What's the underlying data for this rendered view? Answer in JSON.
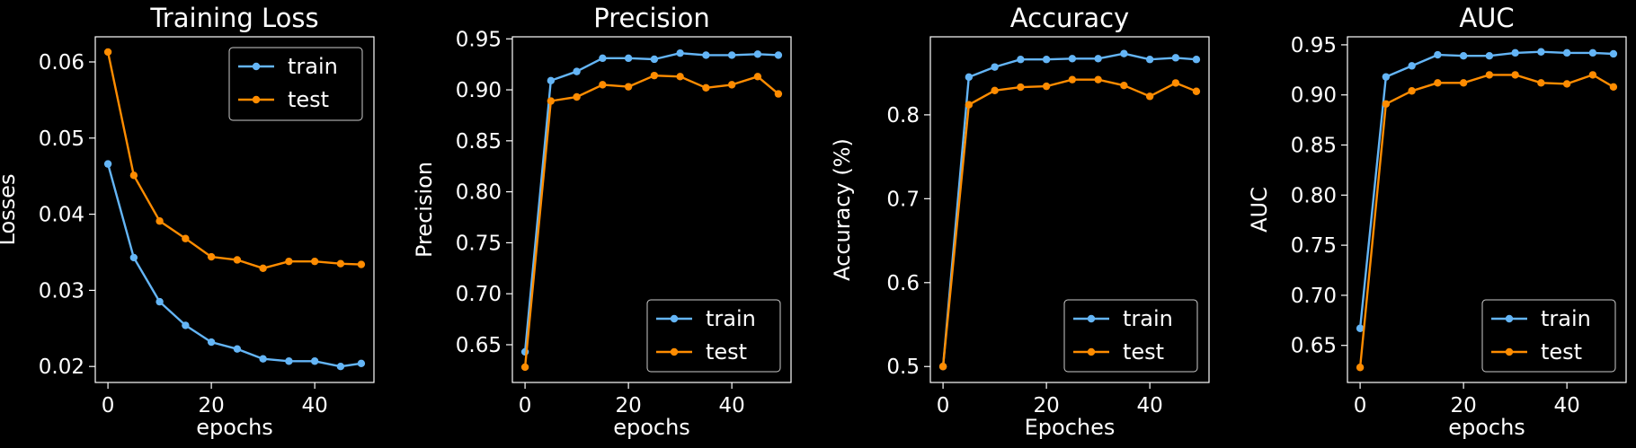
{
  "colors": {
    "background": "#000000",
    "foreground": "#ffffff",
    "train": "#64b5f6",
    "test": "#ff8c00"
  },
  "chart_data": [
    {
      "type": "line",
      "title": "Training Loss",
      "xlabel": "epochs",
      "ylabel": "Losses",
      "x": [
        0,
        5,
        10,
        15,
        20,
        25,
        30,
        35,
        40,
        45,
        49
      ],
      "xlim": [
        -2.45,
        51.45
      ],
      "ylim": [
        0.0179,
        0.0633
      ],
      "xticks": [
        0,
        20,
        40
      ],
      "yticks": [
        0.02,
        0.03,
        0.04,
        0.05,
        0.06
      ],
      "ytick_labels": [
        "0.02",
        "0.03",
        "0.04",
        "0.05",
        "0.06"
      ],
      "legend": "top-right",
      "grid": false,
      "series": [
        {
          "name": "train",
          "values": [
            0.0466,
            0.0343,
            0.0285,
            0.0254,
            0.0232,
            0.0223,
            0.021,
            0.0207,
            0.0207,
            0.02,
            0.0204
          ]
        },
        {
          "name": "test",
          "values": [
            0.0613,
            0.0451,
            0.0391,
            0.0368,
            0.0344,
            0.034,
            0.0329,
            0.0338,
            0.0338,
            0.0335,
            0.0334
          ]
        }
      ]
    },
    {
      "type": "line",
      "title": "Precision",
      "xlabel": "epochs",
      "ylabel": "Precision",
      "x": [
        0,
        5,
        10,
        15,
        20,
        25,
        30,
        35,
        40,
        45,
        49
      ],
      "xlim": [
        -2.45,
        51.45
      ],
      "ylim": [
        0.613,
        0.952
      ],
      "xticks": [
        0,
        20,
        40
      ],
      "yticks": [
        0.65,
        0.7,
        0.75,
        0.8,
        0.85,
        0.9,
        0.95
      ],
      "ytick_labels": [
        "0.65",
        "0.70",
        "0.75",
        "0.80",
        "0.85",
        "0.90",
        "0.95"
      ],
      "legend": "bottom-right",
      "grid": false,
      "series": [
        {
          "name": "train",
          "values": [
            0.643,
            0.909,
            0.918,
            0.931,
            0.931,
            0.93,
            0.936,
            0.934,
            0.934,
            0.935,
            0.934
          ]
        },
        {
          "name": "test",
          "values": [
            0.628,
            0.889,
            0.893,
            0.905,
            0.903,
            0.914,
            0.913,
            0.902,
            0.905,
            0.913,
            0.896
          ]
        }
      ]
    },
    {
      "type": "line",
      "title": "Accuracy",
      "xlabel": "Epoches",
      "ylabel": "Accuracy (%)",
      "x": [
        0,
        5,
        10,
        15,
        20,
        25,
        30,
        35,
        40,
        45,
        49
      ],
      "xlim": [
        -2.45,
        51.45
      ],
      "ylim": [
        0.481,
        0.893
      ],
      "xticks": [
        0,
        20,
        40
      ],
      "yticks": [
        0.5,
        0.6,
        0.7,
        0.8
      ],
      "ytick_labels": [
        "0.5",
        "0.6",
        "0.7",
        "0.8"
      ],
      "legend": "bottom-right",
      "grid": false,
      "series": [
        {
          "name": "train",
          "values": [
            0.5,
            0.845,
            0.857,
            0.866,
            0.866,
            0.867,
            0.867,
            0.873,
            0.866,
            0.868,
            0.866
          ]
        },
        {
          "name": "test",
          "values": [
            0.5,
            0.812,
            0.829,
            0.833,
            0.834,
            0.842,
            0.842,
            0.835,
            0.822,
            0.838,
            0.828
          ]
        }
      ]
    },
    {
      "type": "line",
      "title": "AUC",
      "xlabel": "epochs",
      "ylabel": "AUC",
      "x": [
        0,
        5,
        10,
        15,
        20,
        25,
        30,
        35,
        40,
        45,
        49
      ],
      "xlim": [
        -2.45,
        51.45
      ],
      "ylim": [
        0.613,
        0.958
      ],
      "xticks": [
        0,
        20,
        40
      ],
      "yticks": [
        0.65,
        0.7,
        0.75,
        0.8,
        0.85,
        0.9,
        0.95
      ],
      "ytick_labels": [
        "0.65",
        "0.70",
        "0.75",
        "0.80",
        "0.85",
        "0.90",
        "0.95"
      ],
      "legend": "bottom-right",
      "grid": false,
      "series": [
        {
          "name": "train",
          "values": [
            0.667,
            0.918,
            0.929,
            0.94,
            0.939,
            0.939,
            0.942,
            0.943,
            0.942,
            0.942,
            0.941
          ]
        },
        {
          "name": "test",
          "values": [
            0.628,
            0.891,
            0.904,
            0.912,
            0.912,
            0.92,
            0.92,
            0.912,
            0.911,
            0.92,
            0.908
          ]
        }
      ]
    }
  ]
}
